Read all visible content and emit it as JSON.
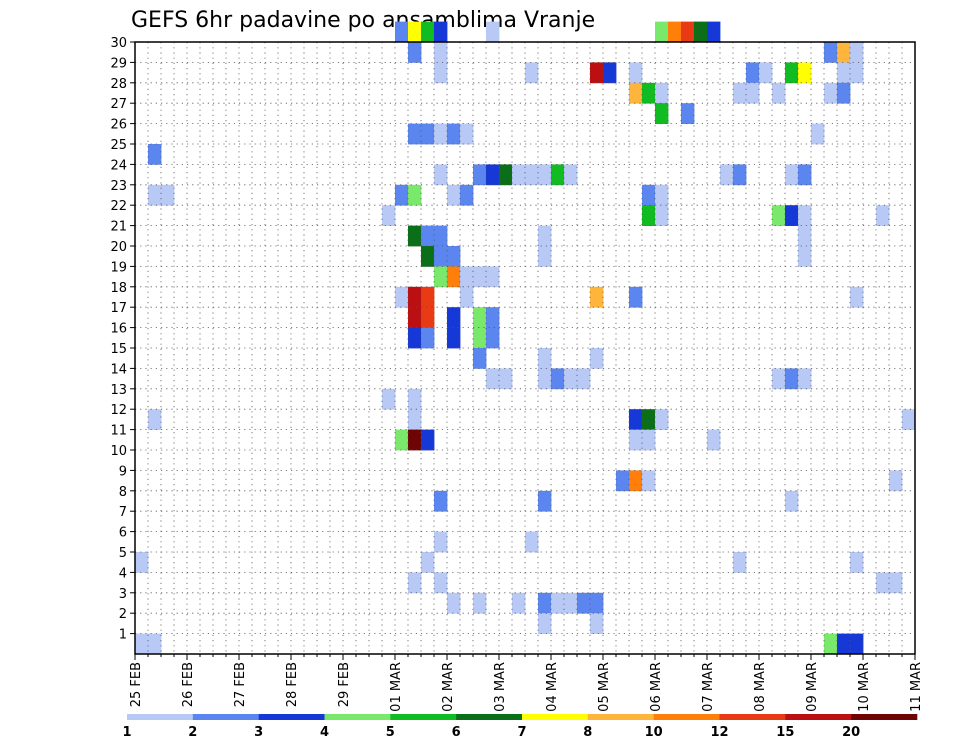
{
  "chart_data": {
    "type": "heatmap",
    "title": "GEFS 6hr padavine po ansamblima Vranje",
    "xlabel": "",
    "ylabel": "",
    "x_tick_labels": [
      "25 FEB",
      "26 FEB",
      "27 FEB",
      "28 FEB",
      "29 FEB",
      "01 MAR",
      "02 MAR",
      "03 MAR",
      "04 MAR",
      "05 MAR",
      "06 MAR",
      "07 MAR",
      "08 MAR",
      "09 MAR",
      "10 MAR",
      "11 MAR"
    ],
    "x_steps_per_day": 4,
    "x_range_steps": [
      0,
      60
    ],
    "y_tick_labels": [
      "1",
      "2",
      "3",
      "4",
      "5",
      "6",
      "7",
      "8",
      "9",
      "10",
      "11",
      "12",
      "13",
      "14",
      "15",
      "16",
      "17",
      "18",
      "19",
      "20",
      "21",
      "22",
      "23",
      "24",
      "25",
      "26",
      "27",
      "28",
      "29",
      "30"
    ],
    "y_range": [
      0,
      30
    ],
    "grid": true,
    "colorbar": {
      "labels": [
        "1",
        "2",
        "3",
        "4",
        "5",
        "6",
        "7",
        "8",
        "10",
        "12",
        "15",
        "20"
      ],
      "colors": [
        "#b9c9f6",
        "#5b86f0",
        "#1638d6",
        "#7ae86a",
        "#10bc22",
        "#0b6e18",
        "#ffff00",
        "#ffb43c",
        "#ff7f0a",
        "#e83a14",
        "#bb0f12",
        "#6e0404"
      ]
    },
    "cells": [
      [
        20,
        30,
        2
      ],
      [
        21,
        30,
        7
      ],
      [
        22,
        30,
        5
      ],
      [
        23,
        30,
        3
      ],
      [
        27,
        30,
        1
      ],
      [
        40,
        30,
        4
      ],
      [
        41,
        30,
        9
      ],
      [
        42,
        30,
        10
      ],
      [
        43,
        30,
        6
      ],
      [
        44,
        30,
        3
      ],
      [
        21,
        29,
        2
      ],
      [
        23,
        29,
        1
      ],
      [
        53,
        29,
        2
      ],
      [
        54,
        29,
        8
      ],
      [
        55,
        29,
        1
      ],
      [
        23,
        28,
        1
      ],
      [
        30,
        28,
        1
      ],
      [
        35,
        28,
        11
      ],
      [
        36,
        28,
        3
      ],
      [
        38,
        28,
        1
      ],
      [
        47,
        28,
        2
      ],
      [
        48,
        28,
        1
      ],
      [
        50,
        28,
        5
      ],
      [
        51,
        28,
        7
      ],
      [
        54,
        28,
        1
      ],
      [
        55,
        28,
        1
      ],
      [
        38,
        27,
        8
      ],
      [
        39,
        27,
        5
      ],
      [
        40,
        27,
        1
      ],
      [
        46,
        27,
        1
      ],
      [
        47,
        27,
        1
      ],
      [
        49,
        27,
        1
      ],
      [
        53,
        27,
        1
      ],
      [
        54,
        27,
        2
      ],
      [
        40,
        26,
        5
      ],
      [
        42,
        26,
        2
      ],
      [
        21,
        25,
        2
      ],
      [
        22,
        25,
        2
      ],
      [
        23,
        25,
        1
      ],
      [
        24,
        25,
        2
      ],
      [
        25,
        25,
        1
      ],
      [
        52,
        25,
        1
      ],
      [
        1,
        24,
        2
      ],
      [
        23,
        23,
        1
      ],
      [
        26,
        23,
        2
      ],
      [
        27,
        23,
        3
      ],
      [
        28,
        23,
        6
      ],
      [
        29,
        23,
        1
      ],
      [
        30,
        23,
        1
      ],
      [
        31,
        23,
        1
      ],
      [
        32,
        23,
        5
      ],
      [
        33,
        23,
        1
      ],
      [
        45,
        23,
        1
      ],
      [
        46,
        23,
        2
      ],
      [
        50,
        23,
        1
      ],
      [
        51,
        23,
        2
      ],
      [
        1,
        22,
        1
      ],
      [
        2,
        22,
        1
      ],
      [
        20,
        22,
        2
      ],
      [
        21,
        22,
        4
      ],
      [
        24,
        22,
        1
      ],
      [
        25,
        22,
        2
      ],
      [
        39,
        22,
        2
      ],
      [
        40,
        22,
        1
      ],
      [
        19,
        21,
        1
      ],
      [
        39,
        21,
        5
      ],
      [
        40,
        21,
        1
      ],
      [
        49,
        21,
        4
      ],
      [
        50,
        21,
        3
      ],
      [
        51,
        21,
        1
      ],
      [
        57,
        21,
        1
      ],
      [
        21,
        20,
        6
      ],
      [
        22,
        20,
        2
      ],
      [
        23,
        20,
        2
      ],
      [
        31,
        20,
        1
      ],
      [
        51,
        20,
        1
      ],
      [
        22,
        19,
        6
      ],
      [
        23,
        19,
        2
      ],
      [
        24,
        19,
        2
      ],
      [
        31,
        19,
        1
      ],
      [
        51,
        19,
        1
      ],
      [
        23,
        18,
        4
      ],
      [
        24,
        18,
        9
      ],
      [
        25,
        18,
        1
      ],
      [
        26,
        18,
        1
      ],
      [
        27,
        18,
        1
      ],
      [
        20,
        17,
        1
      ],
      [
        21,
        17,
        11
      ],
      [
        22,
        17,
        10
      ],
      [
        25,
        17,
        1
      ],
      [
        35,
        17,
        8
      ],
      [
        38,
        17,
        2
      ],
      [
        55,
        17,
        1
      ],
      [
        21,
        16,
        11
      ],
      [
        22,
        16,
        10
      ],
      [
        24,
        16,
        3
      ],
      [
        26,
        16,
        4
      ],
      [
        27,
        16,
        2
      ],
      [
        21,
        15,
        3
      ],
      [
        22,
        15,
        2
      ],
      [
        24,
        15,
        3
      ],
      [
        26,
        15,
        4
      ],
      [
        27,
        15,
        2
      ],
      [
        26,
        14,
        2
      ],
      [
        31,
        14,
        1
      ],
      [
        35,
        14,
        1
      ],
      [
        27,
        13,
        1
      ],
      [
        28,
        13,
        1
      ],
      [
        31,
        13,
        1
      ],
      [
        32,
        13,
        2
      ],
      [
        33,
        13,
        1
      ],
      [
        34,
        13,
        1
      ],
      [
        49,
        13,
        1
      ],
      [
        50,
        13,
        2
      ],
      [
        51,
        13,
        1
      ],
      [
        19,
        12,
        1
      ],
      [
        21,
        12,
        1
      ],
      [
        1,
        11,
        1
      ],
      [
        21,
        11,
        1
      ],
      [
        38,
        11,
        3
      ],
      [
        39,
        11,
        6
      ],
      [
        40,
        11,
        1
      ],
      [
        59,
        11,
        1
      ],
      [
        20,
        10,
        4
      ],
      [
        21,
        10,
        12
      ],
      [
        22,
        10,
        3
      ],
      [
        38,
        10,
        1
      ],
      [
        39,
        10,
        1
      ],
      [
        44,
        10,
        1
      ],
      [
        37,
        8,
        2
      ],
      [
        38,
        8,
        9
      ],
      [
        39,
        8,
        1
      ],
      [
        58,
        8,
        1
      ],
      [
        23,
        7,
        2
      ],
      [
        31,
        7,
        2
      ],
      [
        50,
        7,
        1
      ],
      [
        23,
        5,
        1
      ],
      [
        30,
        5,
        1
      ],
      [
        0,
        4,
        1
      ],
      [
        22,
        4,
        1
      ],
      [
        46,
        4,
        1
      ],
      [
        55,
        4,
        1
      ],
      [
        21,
        3,
        1
      ],
      [
        23,
        3,
        1
      ],
      [
        57,
        3,
        1
      ],
      [
        58,
        3,
        1
      ],
      [
        24,
        2,
        1
      ],
      [
        26,
        2,
        1
      ],
      [
        29,
        2,
        1
      ],
      [
        31,
        2,
        2
      ],
      [
        32,
        2,
        1
      ],
      [
        33,
        2,
        1
      ],
      [
        34,
        2,
        2
      ],
      [
        35,
        2,
        2
      ],
      [
        31,
        1,
        1
      ],
      [
        35,
        1,
        1
      ],
      [
        0,
        0,
        1
      ],
      [
        1,
        0,
        1
      ],
      [
        53,
        0,
        4
      ],
      [
        54,
        0,
        3
      ],
      [
        55,
        0,
        3
      ]
    ]
  }
}
